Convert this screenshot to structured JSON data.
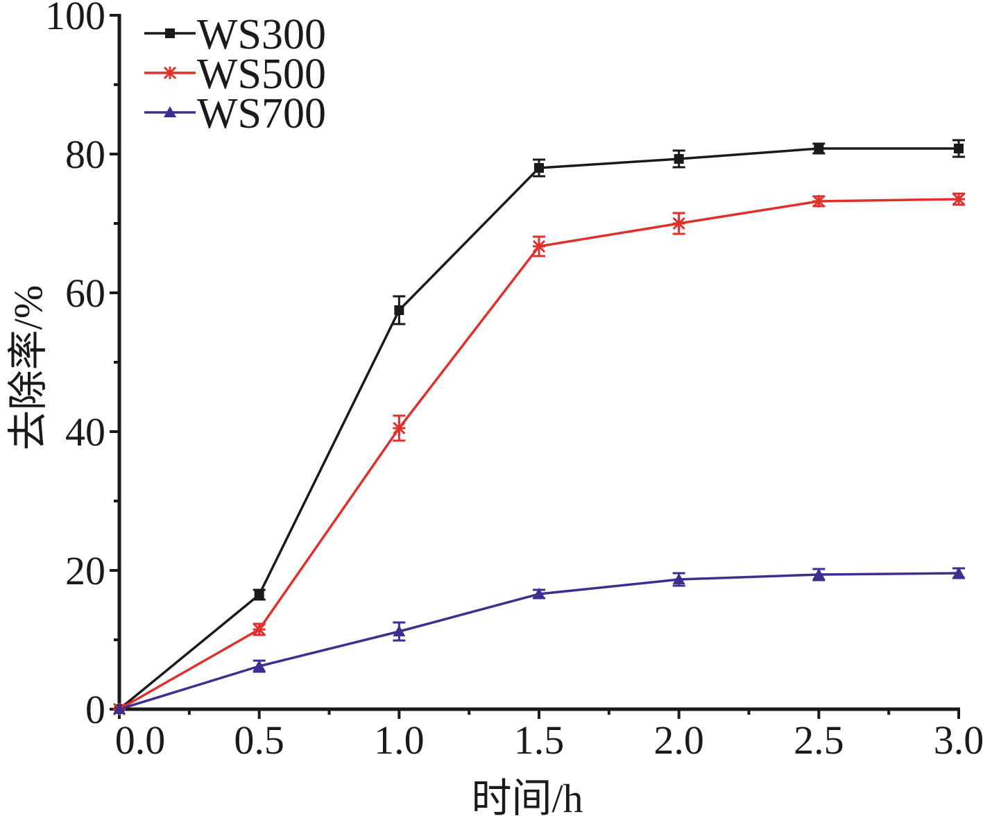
{
  "chart_data": {
    "type": "line",
    "xlabel": "时间/h",
    "ylabel": "去除率/%",
    "xlim": [
      0,
      3.0
    ],
    "ylim": [
      0,
      100
    ],
    "x_ticks": [
      "0.0",
      "0.5",
      "1.0",
      "1.5",
      "2.0",
      "2.5",
      "3.0"
    ],
    "y_ticks": [
      "0",
      "20",
      "40",
      "60",
      "80",
      "100"
    ],
    "x": [
      0,
      0.5,
      1.0,
      1.5,
      2.0,
      2.5,
      3.0
    ],
    "legend_position": "top-left",
    "grid": false,
    "series": [
      {
        "name": "WS300",
        "color": "#1a1a1a",
        "marker": "square",
        "values": [
          0,
          16.5,
          57.5,
          78.0,
          79.3,
          80.8,
          80.8
        ],
        "errors": [
          0,
          0.7,
          2.0,
          1.2,
          1.2,
          0.7,
          1.2
        ]
      },
      {
        "name": "WS500",
        "color": "#e0302b",
        "marker": "star",
        "values": [
          0,
          11.5,
          40.5,
          66.7,
          70.0,
          73.2,
          73.5
        ],
        "errors": [
          0,
          0.8,
          1.8,
          1.4,
          1.5,
          0.7,
          0.8
        ]
      },
      {
        "name": "WS700",
        "color": "#3d2e8f",
        "marker": "triangle",
        "values": [
          0,
          6.2,
          11.2,
          16.6,
          18.7,
          19.4,
          19.6
        ],
        "errors": [
          0,
          0.8,
          1.3,
          0.6,
          0.9,
          0.8,
          0.7
        ]
      }
    ]
  }
}
